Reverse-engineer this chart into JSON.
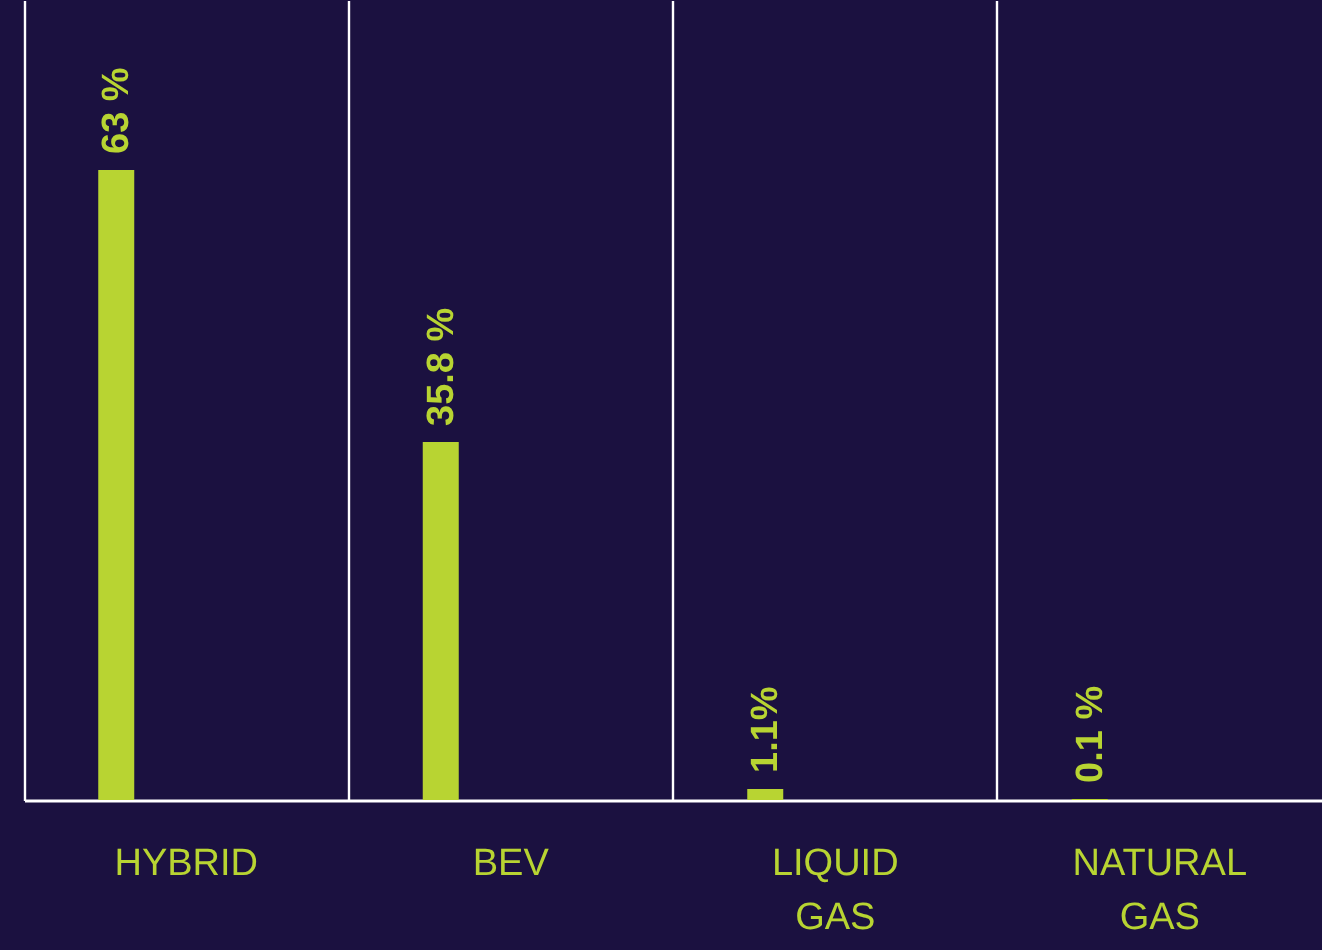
{
  "chart_data": {
    "type": "bar",
    "categories": [
      "HYBRID",
      "BEV",
      "LIQUID GAS",
      "NATURAL GAS"
    ],
    "values": [
      63,
      35.8,
      1.1,
      0.1
    ],
    "value_labels": [
      "63 %",
      "35.8 %",
      "1.1%",
      "0.1 %"
    ],
    "color": "#b8d432",
    "ylim": [
      0,
      80
    ],
    "grid": "x"
  }
}
